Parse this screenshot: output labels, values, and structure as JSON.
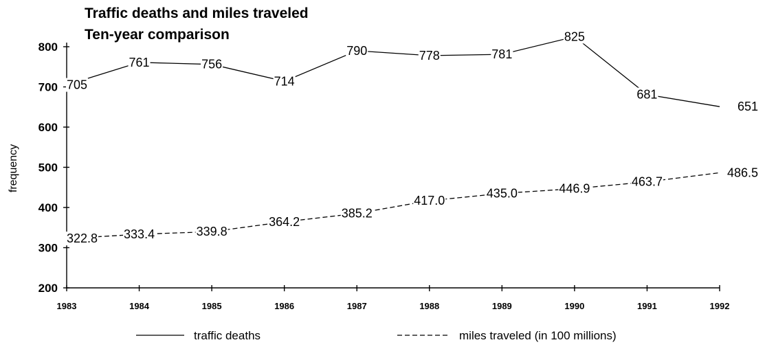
{
  "chart_data": {
    "type": "line",
    "title": "Traffic deaths and miles traveled",
    "subtitle": "Ten-year comparison",
    "xlabel": "",
    "ylabel": "frequency",
    "categories": [
      "1983",
      "1984",
      "1985",
      "1986",
      "1987",
      "1988",
      "1989",
      "1990",
      "1991",
      "1992"
    ],
    "ylim": [
      200,
      800
    ],
    "yticks": [
      200,
      300,
      400,
      500,
      600,
      700,
      800
    ],
    "grid": false,
    "legend": "bottom",
    "series": [
      {
        "name": "traffic deaths",
        "style": "solid",
        "values": [
          705,
          761,
          756,
          714,
          790,
          778,
          781,
          825,
          681,
          651
        ],
        "labels": [
          "705",
          "761",
          "756",
          "714",
          "790",
          "778",
          "781",
          "825",
          "681",
          "651"
        ]
      },
      {
        "name": "miles traveled (in 100 millions)",
        "style": "dashed",
        "values": [
          322.8,
          333.4,
          339.8,
          364.2,
          385.2,
          417.0,
          435.0,
          446.9,
          463.7,
          486.5
        ],
        "labels": [
          "322.8",
          "333.4",
          "339.8",
          "364.2",
          "385.2",
          "417.0",
          "435.0",
          "446.9",
          "463.7",
          "486.5"
        ]
      }
    ],
    "colors": {
      "line": "#000000",
      "background": "#ffffff"
    }
  }
}
